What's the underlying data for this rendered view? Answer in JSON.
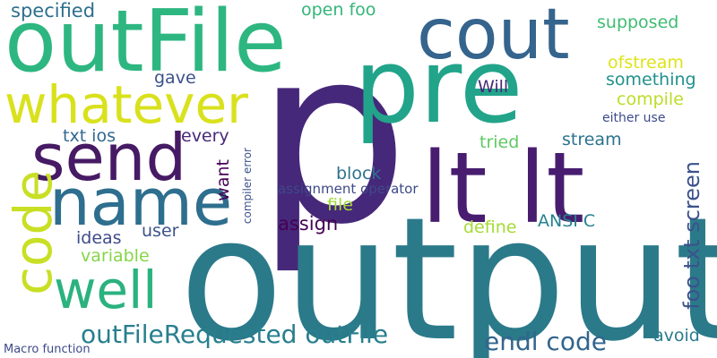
{
  "words": [
    {
      "text": "p",
      "color": "#46287a"
    },
    {
      "text": "output",
      "color": "#2b7a8a"
    },
    {
      "text": "pre",
      "color": "#22a48a"
    },
    {
      "text": "outFile",
      "color": "#2eb681"
    },
    {
      "text": "lt lt",
      "color": "#481d6f"
    },
    {
      "text": "cout",
      "color": "#35648d"
    },
    {
      "text": "name",
      "color": "#2e6e8e"
    },
    {
      "text": "send",
      "color": "#461a64"
    },
    {
      "text": "whatever",
      "color": "#d9e11c"
    },
    {
      "text": "well",
      "color": "#2ab27f"
    },
    {
      "text": "code",
      "color": "#c8df24"
    },
    {
      "text": "outFileRequested outFile",
      "color": "#277f8e"
    },
    {
      "text": "endl code",
      "color": "#32658d"
    },
    {
      "text": "foo txt screen",
      "color": "#3b528b"
    },
    {
      "text": "specified",
      "color": "#2d708e"
    },
    {
      "text": "open foo",
      "color": "#34b679"
    },
    {
      "text": "supposed",
      "color": "#3fbc73"
    },
    {
      "text": "ofstream",
      "color": "#dfe318"
    },
    {
      "text": "something",
      "color": "#21918c"
    },
    {
      "text": "compile",
      "color": "#bade28"
    },
    {
      "text": "gave",
      "color": "#3b528b"
    },
    {
      "text": "Will",
      "color": "#482878"
    },
    {
      "text": "either use",
      "color": "#3e4a89"
    },
    {
      "text": "txt ios",
      "color": "#31688e"
    },
    {
      "text": "every",
      "color": "#482878"
    },
    {
      "text": "tried",
      "color": "#5ec962"
    },
    {
      "text": "stream",
      "color": "#2c728e"
    },
    {
      "text": "block",
      "color": "#2d718e"
    },
    {
      "text": "want",
      "color": "#440154"
    },
    {
      "text": "compiler error",
      "color": "#3b528b"
    },
    {
      "text": "assignment operator",
      "color": "#3e4989"
    },
    {
      "text": "file",
      "color": "#a0da39"
    },
    {
      "text": "assign",
      "color": "#440154"
    },
    {
      "text": "define",
      "color": "#a5db36"
    },
    {
      "text": "ANSI C",
      "color": "#26828e"
    },
    {
      "text": "ideas",
      "color": "#3e4a89"
    },
    {
      "text": "user",
      "color": "#3b528b"
    },
    {
      "text": "variable",
      "color": "#86d549"
    },
    {
      "text": "avoid",
      "color": "#287c8e"
    },
    {
      "text": "Macro function",
      "color": "#3e4989"
    }
  ]
}
